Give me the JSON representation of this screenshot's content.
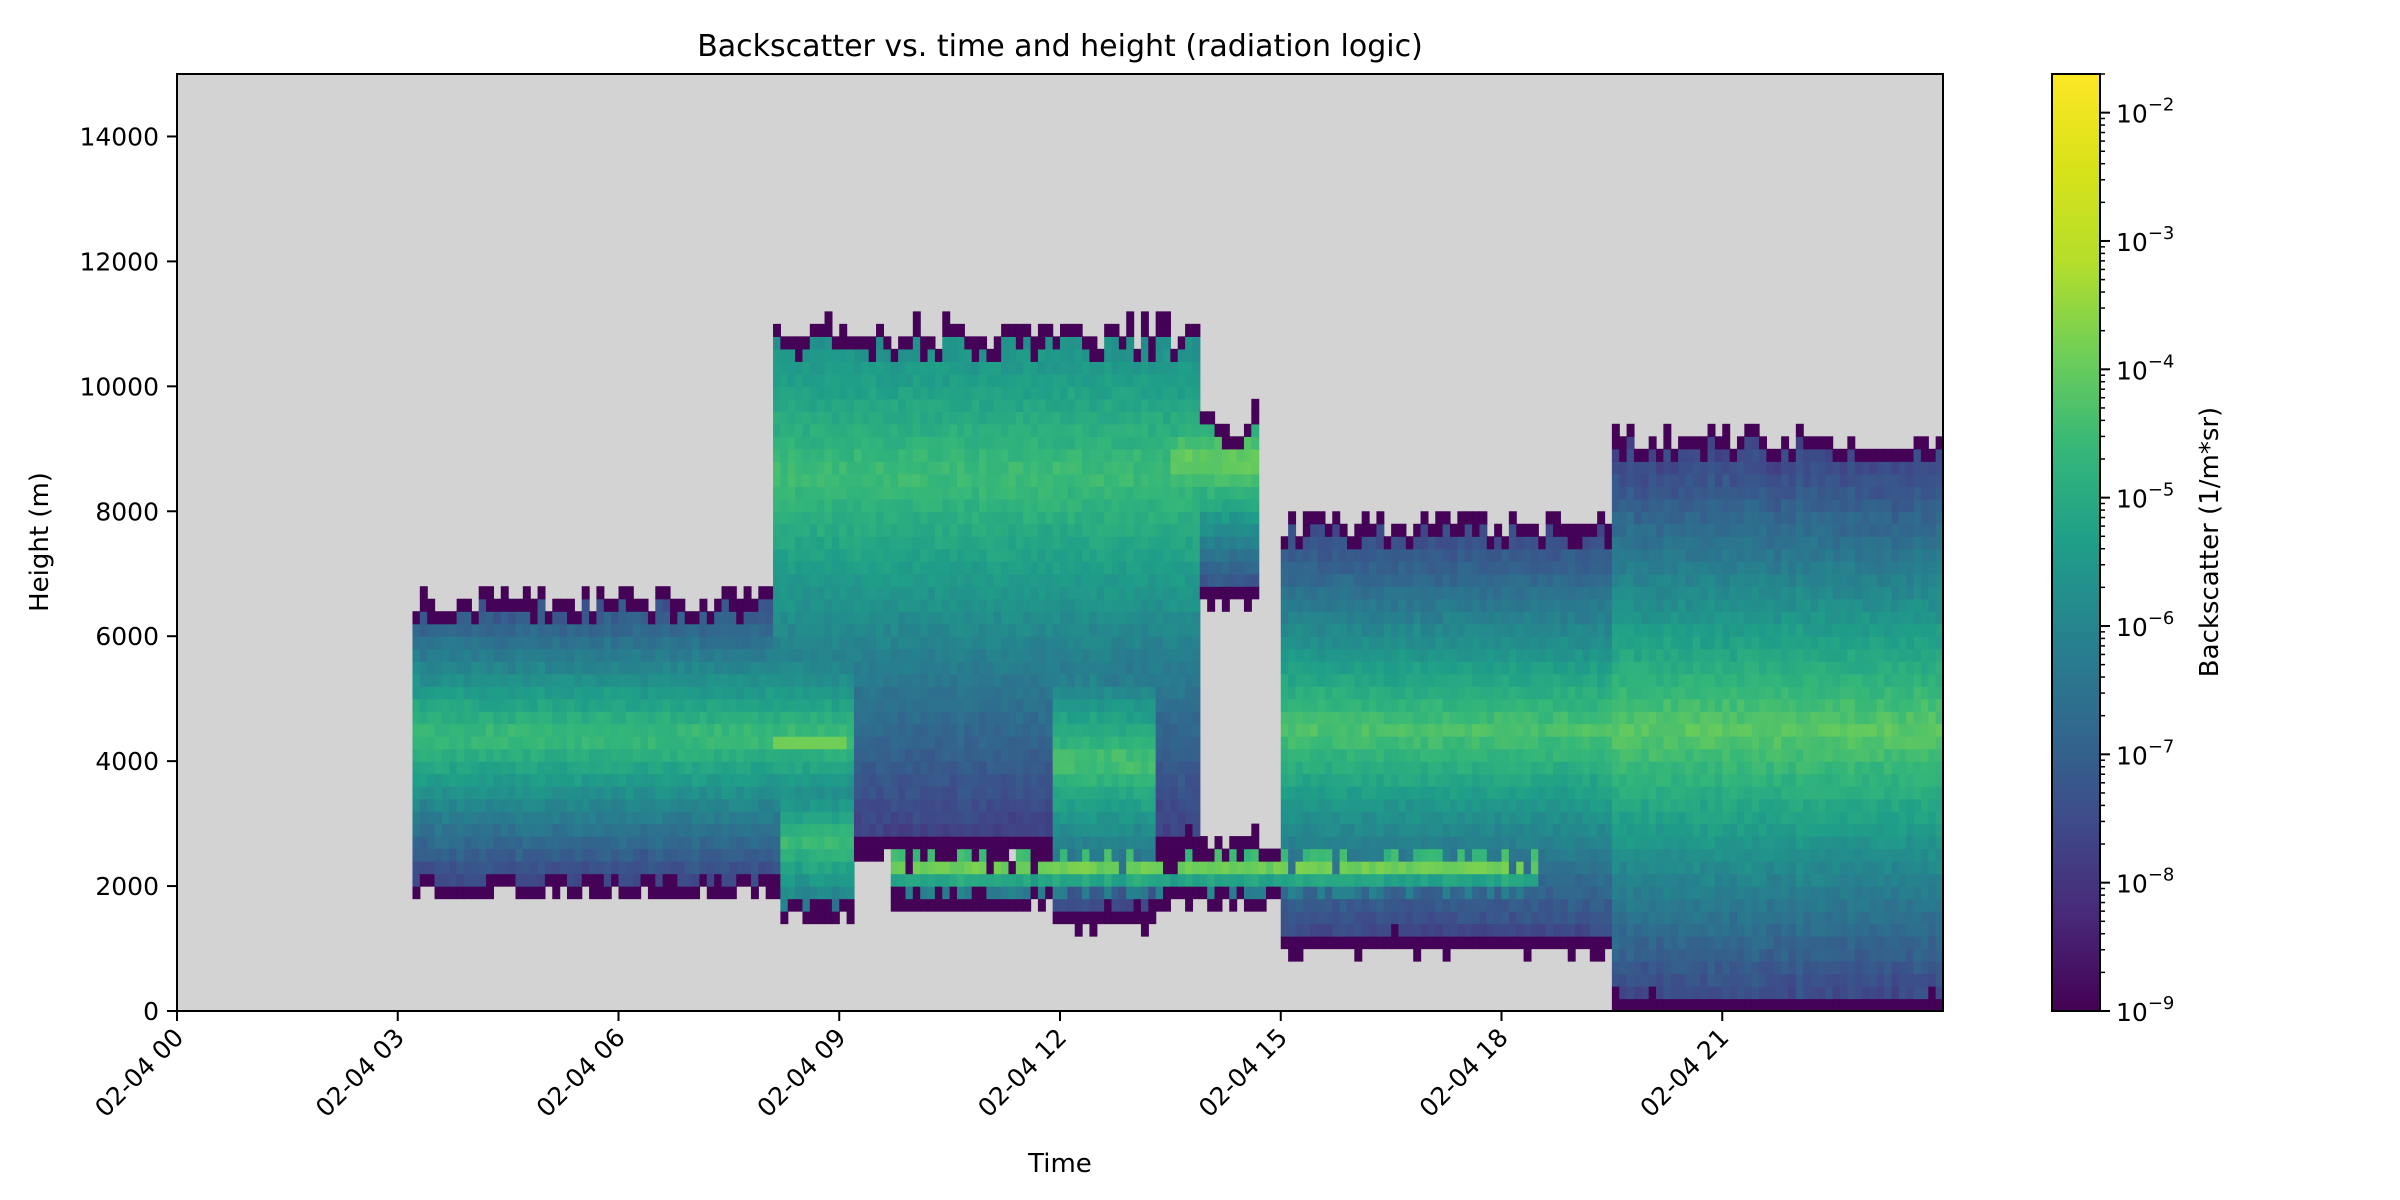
{
  "chart_data": {
    "type": "heatmap",
    "title": "Backscatter vs. time and height (radiation logic)",
    "xlabel": "Time",
    "ylabel": "Height (m)",
    "xlim": [
      "02-04 00:00",
      "02-05 00:00"
    ],
    "ylim": [
      0,
      15000
    ],
    "x_ticks": [
      "02-04 00",
      "02-04 03",
      "02-04 06",
      "02-04 09",
      "02-04 12",
      "02-04 15",
      "02-04 18",
      "02-04 21"
    ],
    "y_ticks": [
      0,
      2000,
      4000,
      6000,
      8000,
      10000,
      12000,
      14000
    ],
    "background_color": "#d3d3d3",
    "grid": false,
    "colorbar": {
      "label": "Backscatter (1/m*sr)",
      "scale": "log",
      "range": [
        1e-09,
        0.02
      ],
      "colormap": "viridis",
      "ticks": [
        {
          "value": 1e-09,
          "base": "10",
          "exp": "−9"
        },
        {
          "value": 1e-08,
          "base": "10",
          "exp": "−8"
        },
        {
          "value": 1e-07,
          "base": "10",
          "exp": "−7"
        },
        {
          "value": 1e-06,
          "base": "10",
          "exp": "−6"
        },
        {
          "value": 1e-05,
          "base": "10",
          "exp": "−5"
        },
        {
          "value": 0.0001,
          "base": "10",
          "exp": "−4"
        },
        {
          "value": 0.001,
          "base": "10",
          "exp": "−3"
        },
        {
          "value": 0.01,
          "base": "10",
          "exp": "−2"
        }
      ]
    },
    "layers": [
      {
        "t_start": 3.2,
        "t_end": 9.2,
        "base": 1900,
        "top": 6600,
        "peak_height": 4400,
        "peak_log": -4.0,
        "bright_strip": {
          "t": [
            8.1,
            9.1
          ],
          "h": [
            4150,
            4350
          ],
          "log": -3.3
        }
      },
      {
        "t_start": 8.2,
        "t_end": 9.2,
        "base": 1500,
        "top": 4700,
        "peak_height": 2700,
        "peak_log": -4.0
      },
      {
        "t_start": 8.1,
        "t_end": 13.9,
        "base": 2600,
        "top": 10900,
        "peak_height": 8600,
        "peak_log": -4.0
      },
      {
        "t_start": 11.9,
        "t_end": 13.3,
        "base": 1400,
        "top": 5600,
        "peak_height": 4000,
        "peak_log": -3.8
      },
      {
        "t_start": 13.5,
        "t_end": 14.7,
        "base": 6600,
        "top": 9500,
        "peak_height": 8800,
        "peak_log": -3.3
      },
      {
        "t_start": 15.0,
        "t_end": 24.0,
        "base": 1000,
        "top": 7800,
        "peak_height": 4500,
        "peak_log": -3.8
      },
      {
        "t_start": 19.5,
        "t_end": 24.0,
        "base": 0,
        "top": 9200,
        "peak_height": 4500,
        "peak_log": -3.6
      },
      {
        "t_start": 9.7,
        "t_end": 18.5,
        "base": 1700,
        "top": 2700,
        "peak_height": 2350,
        "peak_log": -3.0
      }
    ]
  }
}
